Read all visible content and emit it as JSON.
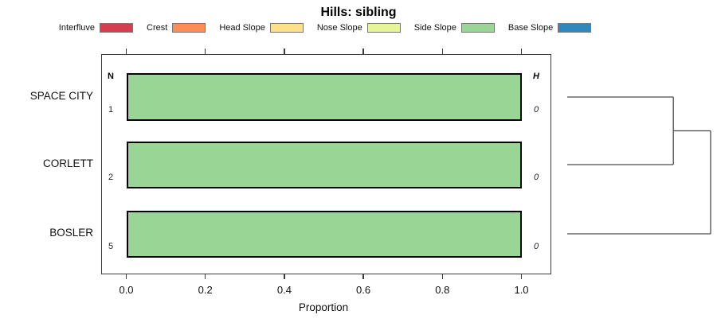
{
  "title": "Hills: sibling",
  "legend": {
    "items": [
      {
        "label": "Interfluve",
        "color": "#D53E4F"
      },
      {
        "label": "Crest",
        "color": "#FC8D59"
      },
      {
        "label": "Head Slope",
        "color": "#FEE08B"
      },
      {
        "label": "Nose Slope",
        "color": "#E6F598"
      },
      {
        "label": "Side Slope",
        "color": "#99D594"
      },
      {
        "label": "Base Slope",
        "color": "#3288BD"
      }
    ]
  },
  "chart_data": {
    "type": "bar",
    "orientation": "horizontal-stacked-proportion",
    "title": "Hills: sibling",
    "xlabel": "Proportion",
    "xlim": [
      0,
      1
    ],
    "x_ticks": [
      0.0,
      0.2,
      0.4,
      0.6,
      0.8,
      1.0
    ],
    "x_tick_labels": [
      "0.0",
      "0.2",
      "0.4",
      "0.6",
      "0.8",
      "1.0"
    ],
    "top_axis_ticks_no_labels": true,
    "grid": false,
    "legend_position": "top",
    "categories": [
      "SPACE CITY",
      "CORLETT",
      "BOSLER"
    ],
    "series": [
      {
        "name": "Interfluve",
        "color": "#D53E4F",
        "values": [
          0,
          0,
          0
        ]
      },
      {
        "name": "Crest",
        "color": "#FC8D59",
        "values": [
          0,
          0,
          0
        ]
      },
      {
        "name": "Head Slope",
        "color": "#FEE08B",
        "values": [
          0,
          0,
          0
        ]
      },
      {
        "name": "Nose Slope",
        "color": "#E6F598",
        "values": [
          0,
          0,
          0
        ]
      },
      {
        "name": "Side Slope",
        "color": "#99D594",
        "values": [
          1.0,
          1.0,
          1.0
        ]
      },
      {
        "name": "Base Slope",
        "color": "#3288BD",
        "values": [
          0,
          0,
          0
        ]
      }
    ],
    "annotations": {
      "n_header": "N",
      "h_header": "H",
      "n_values": [
        "1",
        "2",
        "5"
      ],
      "h_values": [
        "0",
        "0",
        "0"
      ]
    }
  },
  "dendrogram": {
    "leaves": [
      "SPACE CITY",
      "CORLETT",
      "BOSLER"
    ],
    "merges": [
      {
        "children": [
          0,
          1
        ],
        "relative_height": 0.74
      },
      {
        "children": [
          "m0",
          2
        ],
        "relative_height": 1.0
      }
    ]
  },
  "colors": {
    "background": "#FFFFFF",
    "bar_border": "#000000",
    "plot_box_border": "#3A3A3A",
    "dendrogram_line": "#4A4A4A"
  }
}
